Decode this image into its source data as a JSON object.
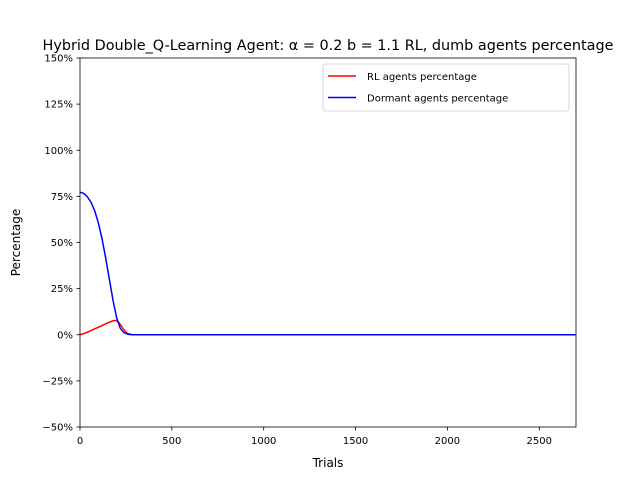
{
  "chart_data": {
    "type": "line",
    "title": "Hybrid Double_Q-Learning Agent: α = 0.2 b = 1.1 RL, dumb agents percentage",
    "xlabel": "Trials",
    "ylabel": "Percentage",
    "xlim": [
      0,
      2700
    ],
    "ylim": [
      -50,
      150
    ],
    "x_ticks": [
      0,
      500,
      1000,
      1500,
      2000,
      2500
    ],
    "x_tick_labels": [
      "0",
      "500",
      "1000",
      "1500",
      "2000",
      "2500"
    ],
    "y_ticks": [
      -50,
      -25,
      0,
      25,
      50,
      75,
      100,
      125,
      150
    ],
    "y_tick_labels": [
      "−50%",
      "−25%",
      "0%",
      "25%",
      "50%",
      "75%",
      "100%",
      "125%",
      "150%"
    ],
    "grid": false,
    "legend_position": "upper-right",
    "series": [
      {
        "name": "RL agents percentage",
        "color": "#ff0000",
        "x": [
          0,
          20,
          40,
          60,
          80,
          100,
          120,
          140,
          160,
          180,
          195,
          210,
          225,
          240,
          255,
          270,
          285,
          300,
          350,
          500,
          1000,
          1500,
          2000,
          2500,
          2700
        ],
        "y": [
          0,
          0.6,
          1.4,
          2.3,
          3.2,
          4.1,
          5.0,
          5.9,
          6.8,
          7.6,
          7.8,
          6.8,
          4.8,
          2.6,
          1.0,
          0.3,
          0.1,
          0,
          0,
          0,
          0,
          0,
          0,
          0,
          0
        ]
      },
      {
        "name": "Dormant agents percentage",
        "color": "#0000ff",
        "x": [
          0,
          10,
          20,
          40,
          60,
          80,
          100,
          120,
          140,
          160,
          180,
          200,
          220,
          240,
          260,
          280,
          300,
          350,
          500,
          1000,
          1500,
          2000,
          2500,
          2700
        ],
        "y": [
          77.2,
          77,
          76.6,
          74.8,
          71.8,
          67.2,
          60.6,
          52,
          41.5,
          30,
          18.5,
          9,
          3.4,
          1.1,
          0.3,
          0.05,
          0,
          0,
          0,
          0,
          0,
          0,
          0,
          0
        ]
      }
    ]
  }
}
